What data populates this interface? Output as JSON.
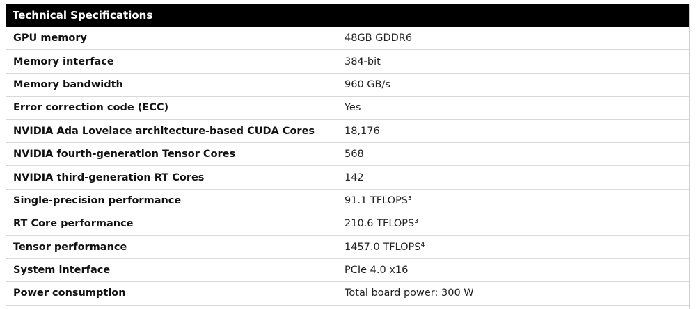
{
  "table": {
    "title": "Technical Specifications",
    "rows": [
      {
        "label": "GPU memory",
        "value": "48GB GDDR6"
      },
      {
        "label": "Memory interface",
        "value": "384-bit"
      },
      {
        "label": "Memory bandwidth",
        "value": "960 GB/s"
      },
      {
        "label": "Error correction code (ECC)",
        "value": "Yes"
      },
      {
        "label": "NVIDIA Ada Lovelace architecture-based CUDA Cores",
        "value": "18,176"
      },
      {
        "label": "NVIDIA fourth-generation Tensor Cores",
        "value": "568"
      },
      {
        "label": "NVIDIA third-generation RT Cores",
        "value": "142"
      },
      {
        "label": "Single-precision performance",
        "value": "91.1 TFLOPS³"
      },
      {
        "label": "RT Core performance",
        "value": "210.6 TFLOPS³"
      },
      {
        "label": "Tensor performance",
        "value": "1457.0 TFLOPS⁴"
      },
      {
        "label": "System interface",
        "value": "PCIe 4.0 x16"
      },
      {
        "label": "Power consumption",
        "value": "Total board power: 300 W"
      }
    ]
  }
}
